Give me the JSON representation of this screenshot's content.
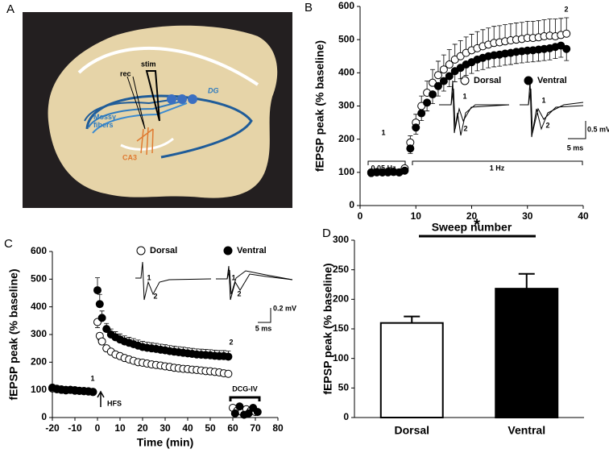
{
  "diagram": {
    "label": "A",
    "texts": [
      "rec",
      "stim",
      "DG",
      "Mossy fibers",
      "CA3"
    ]
  },
  "chart_data": [
    {
      "type": "scatter",
      "label": "B",
      "x_label": "Sweep number",
      "y_label": "fEPSP peak (% baseline)",
      "x": [
        2,
        3,
        4,
        5,
        6,
        7,
        8,
        9,
        10,
        11,
        12,
        13,
        14,
        15,
        16,
        17,
        18,
        19,
        20,
        21,
        22,
        23,
        24,
        25,
        26,
        27,
        28,
        29,
        30,
        31,
        32,
        33,
        34,
        35,
        36,
        37
      ],
      "series": [
        {
          "name": "Dorsal",
          "color": "#000000",
          "fill": "#ffffff",
          "error_side": "up",
          "values": [
            98,
            100,
            100,
            102,
            101,
            100,
            112,
            190,
            250,
            300,
            340,
            370,
            393,
            410,
            425,
            440,
            450,
            460,
            468,
            474,
            480,
            485,
            490,
            492,
            495,
            498,
            500,
            502,
            505,
            505,
            507,
            510,
            512,
            510,
            514,
            518
          ],
          "errors": [
            5,
            5,
            5,
            5,
            5,
            5,
            8,
            20,
            25,
            30,
            35,
            40,
            42,
            44,
            45,
            46,
            47,
            48,
            48,
            50,
            50,
            50,
            50,
            50,
            50,
            50,
            50,
            50,
            50,
            50,
            50,
            50,
            50,
            52,
            50,
            48
          ]
        },
        {
          "name": "Ventral",
          "color": "#000000",
          "fill": "#000000",
          "error_side": "down",
          "values": [
            100,
            101,
            100,
            100,
            102,
            100,
            105,
            172,
            235,
            278,
            310,
            335,
            360,
            375,
            390,
            405,
            415,
            425,
            432,
            440,
            445,
            450,
            453,
            455,
            458,
            460,
            463,
            465,
            467,
            468,
            470,
            472,
            474,
            478,
            482,
            472
          ],
          "errors": [
            5,
            5,
            5,
            5,
            5,
            5,
            8,
            15,
            20,
            22,
            25,
            28,
            30,
            30,
            32,
            32,
            33,
            33,
            34,
            34,
            35,
            35,
            35,
            35,
            35,
            35,
            35,
            35,
            35,
            35,
            35,
            35,
            35,
            35,
            35,
            35
          ]
        }
      ],
      "xlim": [
        0,
        40
      ],
      "xticks": [
        0,
        10,
        20,
        30,
        40
      ],
      "ylim": [
        0,
        600
      ],
      "yticks": [
        0,
        100,
        200,
        300,
        400,
        500,
        600
      ],
      "annotations": [
        "1",
        "2",
        "0.05 Hz",
        "1 Hz",
        "0.5 mV",
        "5 ms",
        "1",
        "2",
        "1",
        "2"
      ]
    },
    {
      "type": "scatter",
      "label": "C",
      "x_label": "Time (min)",
      "y_label": "fEPSP peak (% baseline)",
      "series": [
        {
          "name": "Dorsal",
          "color": "#000000",
          "fill": "#ffffff",
          "error_side": "down",
          "x": [
            -20,
            -18,
            -16,
            -14,
            -12,
            -10,
            -8,
            -6,
            -4,
            -2,
            0,
            1,
            2,
            4,
            6,
            8,
            10,
            12,
            14,
            16,
            18,
            20,
            22,
            24,
            26,
            28,
            30,
            32,
            34,
            36,
            38,
            40,
            42,
            44,
            46,
            48,
            50,
            52,
            54,
            56,
            58,
            60,
            62,
            64,
            66,
            68,
            70
          ],
          "values": [
            105,
            102,
            100,
            98,
            100,
            97,
            96,
            95,
            94,
            92,
            345,
            295,
            275,
            250,
            238,
            228,
            222,
            215,
            210,
            205,
            200,
            198,
            195,
            192,
            190,
            188,
            185,
            183,
            180,
            178,
            176,
            175,
            173,
            172,
            170,
            168,
            167,
            165,
            163,
            160,
            158,
            35,
            25,
            20,
            30,
            25,
            20
          ],
          "errors": [
            8,
            8,
            8,
            8,
            8,
            8,
            8,
            8,
            8,
            8,
            20,
            15,
            12,
            10,
            10,
            10,
            10,
            10,
            10,
            10,
            10,
            10,
            10,
            10,
            10,
            10,
            10,
            10,
            10,
            10,
            10,
            10,
            10,
            10,
            10,
            10,
            10,
            10,
            10,
            10,
            10,
            5,
            5,
            5,
            5,
            5,
            5
          ]
        },
        {
          "name": "Ventral",
          "color": "#000000",
          "fill": "#000000",
          "error_side": "up",
          "x": [
            -20,
            -18,
            -16,
            -14,
            -12,
            -10,
            -8,
            -6,
            -4,
            -2,
            0,
            1,
            2,
            4,
            6,
            8,
            10,
            12,
            14,
            16,
            18,
            20,
            22,
            24,
            26,
            28,
            30,
            32,
            34,
            36,
            38,
            40,
            42,
            44,
            46,
            48,
            50,
            52,
            54,
            56,
            58,
            61,
            63,
            65,
            67,
            69,
            71
          ],
          "values": [
            108,
            104,
            102,
            100,
            100,
            99,
            97,
            96,
            95,
            93,
            460,
            410,
            360,
            320,
            300,
            290,
            282,
            275,
            270,
            265,
            260,
            255,
            252,
            250,
            248,
            245,
            243,
            240,
            238,
            236,
            234,
            232,
            230,
            228,
            227,
            226,
            225,
            223,
            222,
            222,
            220,
            15,
            40,
            10,
            15,
            35,
            20
          ],
          "errors": [
            8,
            8,
            8,
            8,
            8,
            8,
            8,
            8,
            8,
            8,
            45,
            35,
            25,
            20,
            20,
            20,
            20,
            20,
            20,
            20,
            20,
            20,
            20,
            20,
            20,
            20,
            20,
            20,
            20,
            20,
            20,
            20,
            20,
            20,
            20,
            20,
            20,
            20,
            20,
            20,
            20,
            5,
            5,
            5,
            5,
            5,
            5
          ]
        }
      ],
      "xlim": [
        -20,
        80
      ],
      "xticks": [
        -20,
        -10,
        0,
        10,
        20,
        30,
        40,
        50,
        60,
        70,
        80
      ],
      "ylim": [
        0,
        600
      ],
      "yticks": [
        0,
        100,
        200,
        300,
        400,
        500,
        600
      ],
      "annotations": [
        "1",
        "2",
        "HFS",
        "DCG-IV",
        "0.2 mV",
        "5 ms",
        "1",
        "2",
        "1",
        "2"
      ]
    },
    {
      "type": "bar",
      "label": "D",
      "y_label": "fEPSP peak (% baseline)",
      "categories": [
        "Dorsal",
        "Ventral"
      ],
      "values": [
        160,
        218
      ],
      "errors": [
        11,
        25
      ],
      "colors": [
        "#ffffff",
        "#000000"
      ],
      "ylim": [
        0,
        300
      ],
      "yticks": [
        0,
        50,
        100,
        150,
        200,
        250,
        300
      ],
      "annotations": [
        "*"
      ]
    }
  ]
}
